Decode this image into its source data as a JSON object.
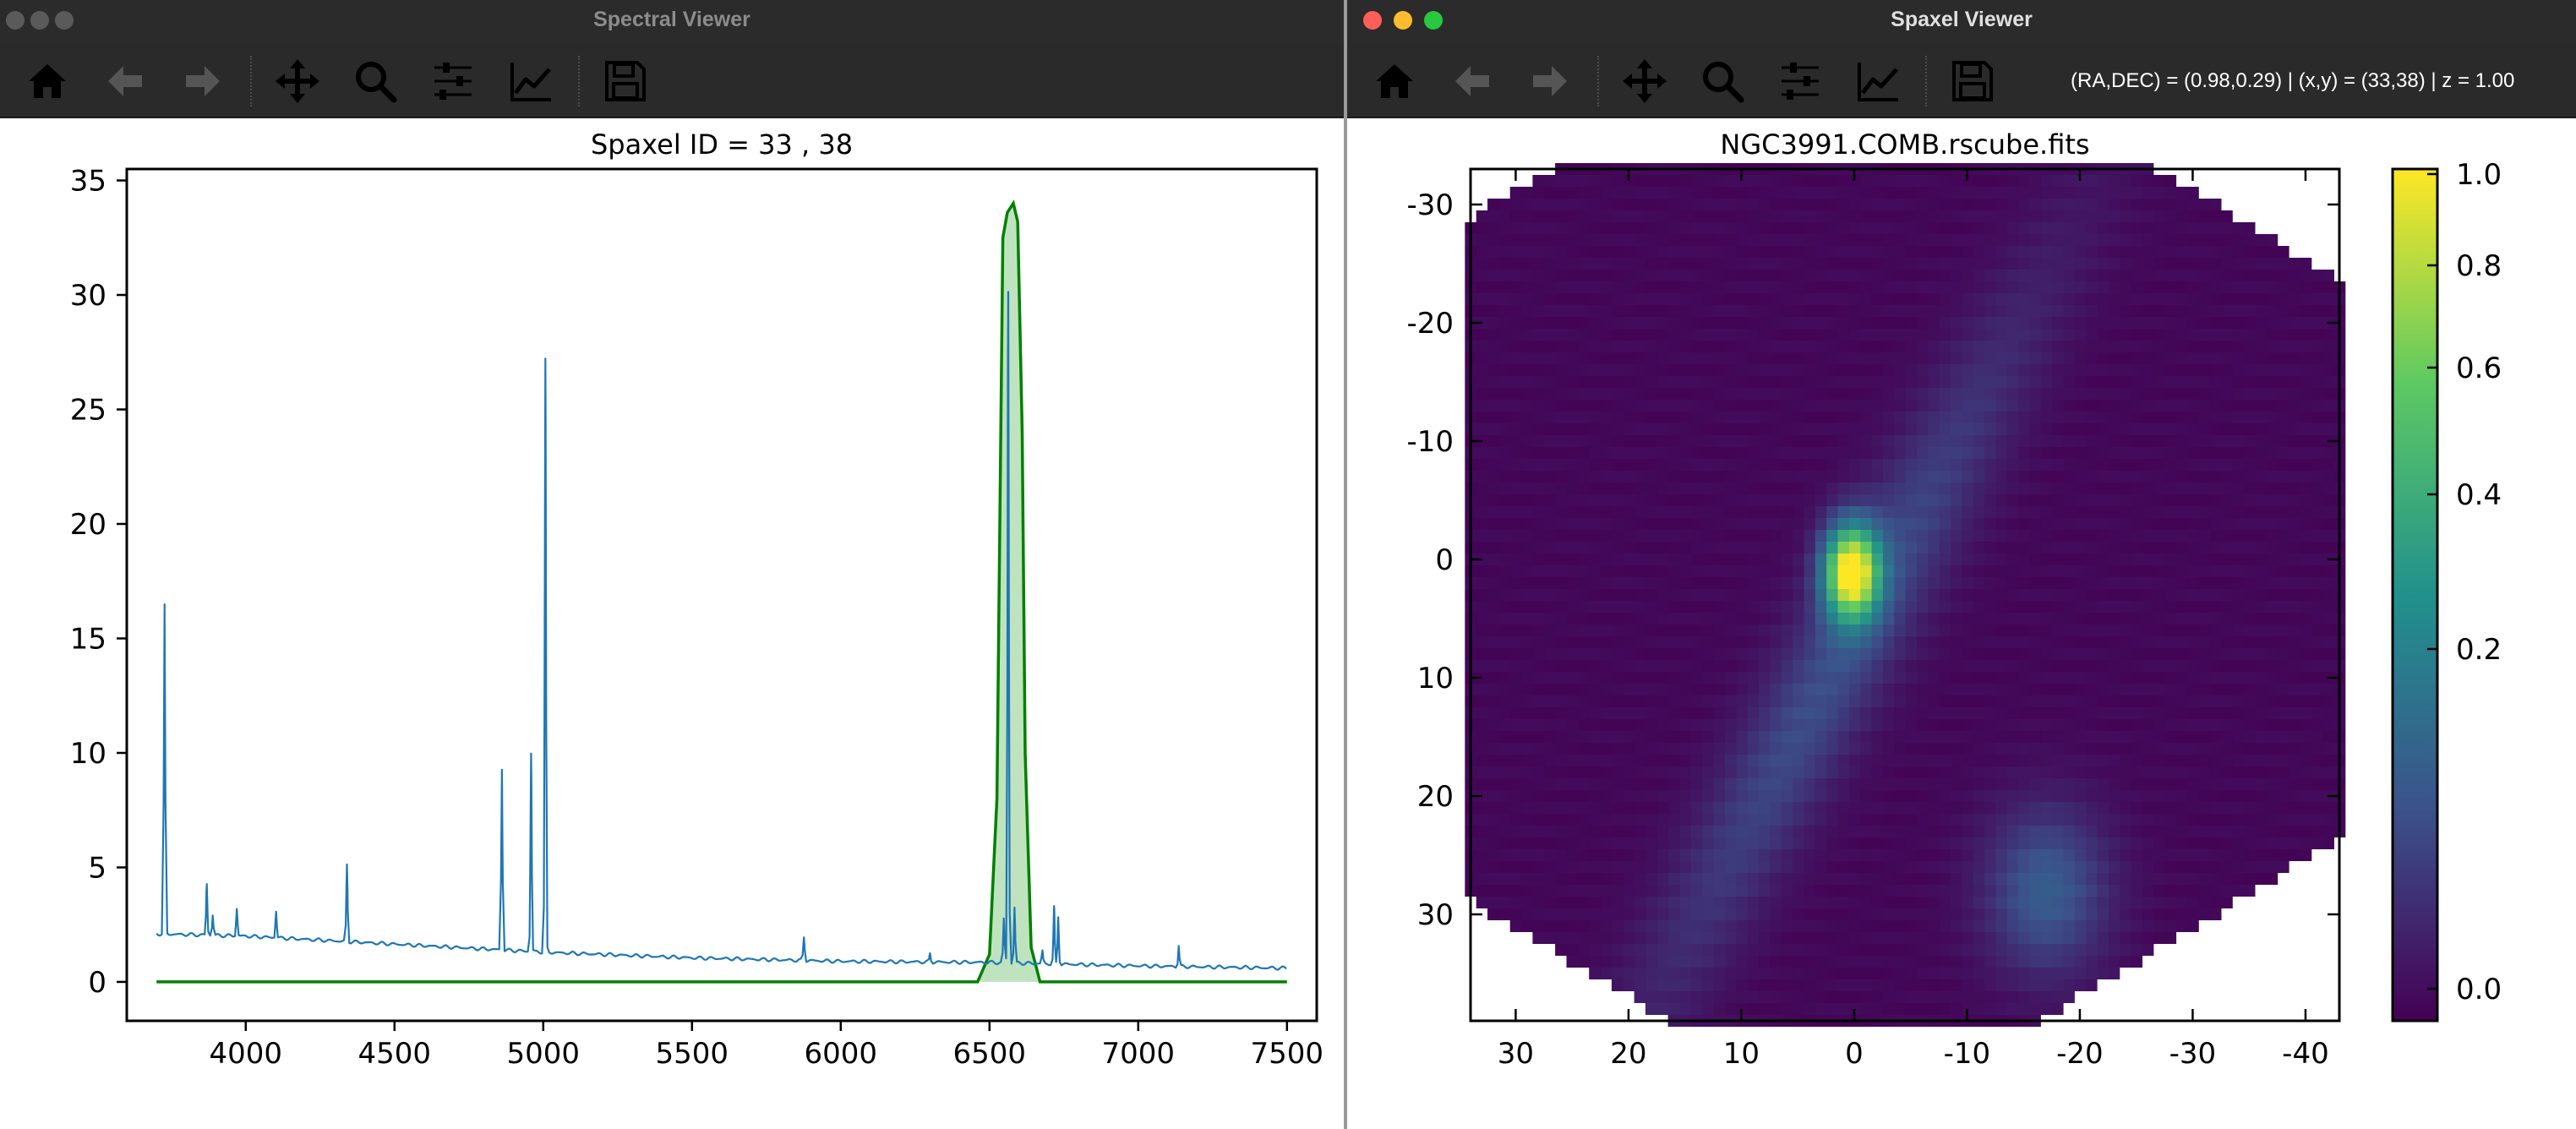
{
  "spectral_window": {
    "title": "Spectral Viewer",
    "toolbar": [
      {
        "icon": "home-icon"
      },
      {
        "icon": "back-arrow-icon"
      },
      {
        "icon": "forward-arrow-icon"
      },
      {
        "icon": "pan-icon"
      },
      {
        "icon": "zoom-icon"
      },
      {
        "icon": "configure-subplots-icon"
      },
      {
        "icon": "edit-curve-icon"
      },
      {
        "icon": "save-icon"
      }
    ],
    "traffic_lights": [
      "#5a5a5a",
      "#5a5a5a",
      "#5a5a5a"
    ]
  },
  "spaxel_window": {
    "title": "Spaxel Viewer",
    "coords_readout": "(RA,DEC) = (0.98,0.29) | (x,y) = (33,38) | z = 1.00",
    "traffic_lights": [
      "#ff5f57",
      "#febc2e",
      "#28c840"
    ]
  },
  "chart_data": [
    {
      "type": "line",
      "title": "Spaxel ID = 33 , 38",
      "xlabel": "",
      "ylabel": "",
      "xlim": [
        3600,
        7600
      ],
      "ylim": [
        -1.7,
        35.5
      ],
      "xticks": [
        4000,
        4500,
        5000,
        5500,
        6000,
        6500,
        7000,
        7500
      ],
      "yticks": [
        0,
        5,
        10,
        15,
        20,
        25,
        30,
        35
      ],
      "grid": false,
      "series": [
        {
          "color": "#1f77b4",
          "continuum": [
            [
              3700,
              2.1
            ],
            [
              4000,
              2.0
            ],
            [
              4500,
              1.65
            ],
            [
              5000,
              1.3
            ],
            [
              5500,
              1.05
            ],
            [
              6000,
              0.9
            ],
            [
              6500,
              0.85
            ],
            [
              7000,
              0.7
            ],
            [
              7500,
              0.6
            ]
          ],
          "emission_lines": [
            {
              "x": 3727,
              "peak": 16.5
            },
            {
              "x": 3869,
              "peak": 4.2
            },
            {
              "x": 3889,
              "peak": 2.9
            },
            {
              "x": 3970,
              "peak": 3.2
            },
            {
              "x": 4102,
              "peak": 3.1
            },
            {
              "x": 4340,
              "peak": 5.2
            },
            {
              "x": 4861,
              "peak": 9.2
            },
            {
              "x": 4959,
              "peak": 9.9
            },
            {
              "x": 5007,
              "peak": 27.2
            },
            {
              "x": 5876,
              "peak": 2.0
            },
            {
              "x": 6300,
              "peak": 1.2
            },
            {
              "x": 6548,
              "peak": 2.8
            },
            {
              "x": 6563,
              "peak": 30.1
            },
            {
              "x": 6584,
              "peak": 3.2
            },
            {
              "x": 6678,
              "peak": 1.4
            },
            {
              "x": 6717,
              "peak": 3.3
            },
            {
              "x": 6731,
              "peak": 2.8
            },
            {
              "x": 7136,
              "peak": 1.5
            }
          ]
        },
        {
          "color": "#008000",
          "fill": "#bfe3bf",
          "filter_profile": [
            [
              3700,
              0
            ],
            [
              6460,
              0
            ],
            [
              6500,
              1.2
            ],
            [
              6525,
              8
            ],
            [
              6545,
              32.5
            ],
            [
              6560,
              33.6
            ],
            [
              6580,
              34.0
            ],
            [
              6595,
              33.2
            ],
            [
              6610,
              24
            ],
            [
              6620,
              10
            ],
            [
              6640,
              1.5
            ],
            [
              6670,
              0
            ],
            [
              7500,
              0
            ]
          ]
        }
      ]
    },
    {
      "type": "heatmap",
      "title": "NGC3991.COMB.rscube.fits",
      "xlabel": "",
      "ylabel": "",
      "xlim": [
        34,
        -43
      ],
      "ylim": [
        -33,
        39
      ],
      "xticks": [
        30,
        20,
        10,
        0,
        -10,
        -20,
        -30,
        -40
      ],
      "yticks": [
        -30,
        -20,
        -10,
        0,
        10,
        20,
        30
      ],
      "colormap": "viridis",
      "colorbar": {
        "ticks": [
          "1.0",
          "0.8",
          "0.6",
          "0.4",
          "0.2",
          "0.0"
        ],
        "range": [
          0,
          1
        ]
      },
      "peak": {
        "x": 0,
        "y": 0,
        "value": 1.0
      }
    }
  ]
}
